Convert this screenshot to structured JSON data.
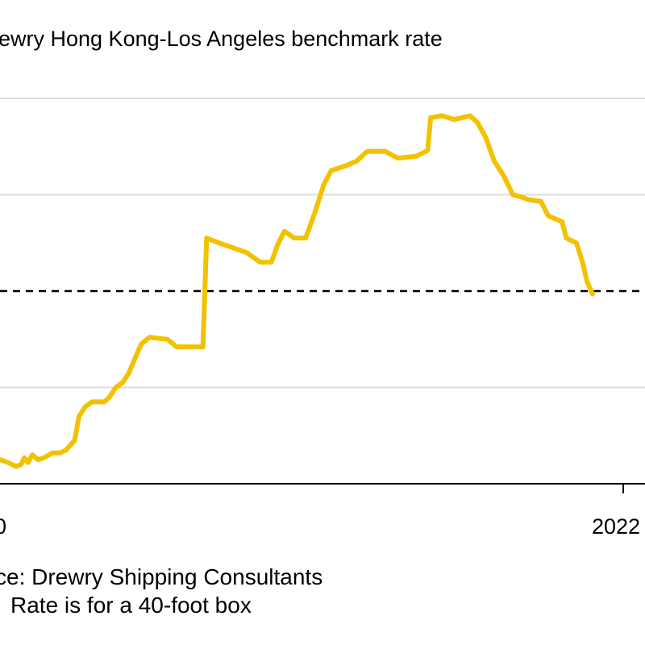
{
  "colors": {
    "line": "#f2c200",
    "grid": "#dcdcdc",
    "axis": "#000000",
    "reference": "#000000"
  },
  "chart_data": {
    "type": "line",
    "subtitle": "ewry Hong Kong-Los Angeles benchmark rate",
    "x_tick_labels": [
      "0",
      "2022"
    ],
    "x_range": [
      0,
      100
    ],
    "y_range": [
      0,
      4
    ],
    "grid": true,
    "reference_line": {
      "y": 2,
      "style": "dashed"
    },
    "series": [
      {
        "points": [
          [
            0,
            0.25
          ],
          [
            1.3,
            0.22
          ],
          [
            2.6,
            0.18
          ],
          [
            3.4,
            0.2
          ],
          [
            3.9,
            0.27
          ],
          [
            4.5,
            0.22
          ],
          [
            5.2,
            0.3
          ],
          [
            6.1,
            0.25
          ],
          [
            7.1,
            0.27
          ],
          [
            8.4,
            0.32
          ],
          [
            9.6,
            0.32
          ],
          [
            10.6,
            0.35
          ],
          [
            12.0,
            0.45
          ],
          [
            12.7,
            0.7
          ],
          [
            13.7,
            0.8
          ],
          [
            14.8,
            0.85
          ],
          [
            16.8,
            0.85
          ],
          [
            17.6,
            0.9
          ],
          [
            18.6,
            1.0
          ],
          [
            19.7,
            1.05
          ],
          [
            20.7,
            1.15
          ],
          [
            21.7,
            1.3
          ],
          [
            22.7,
            1.45
          ],
          [
            24.0,
            1.52
          ],
          [
            26.9,
            1.5
          ],
          [
            28.4,
            1.42
          ],
          [
            32.6,
            1.42
          ],
          [
            33.2,
            2.55
          ],
          [
            35.2,
            2.5
          ],
          [
            39.6,
            2.4
          ],
          [
            41.8,
            2.3
          ],
          [
            43.6,
            2.3
          ],
          [
            44.6,
            2.48
          ],
          [
            45.7,
            2.62
          ],
          [
            47.3,
            2.55
          ],
          [
            49.1,
            2.55
          ],
          [
            50.5,
            2.8
          ],
          [
            52.0,
            3.1
          ],
          [
            53.2,
            3.25
          ],
          [
            55.5,
            3.3
          ],
          [
            57.3,
            3.35
          ],
          [
            59.0,
            3.45
          ],
          [
            61.9,
            3.45
          ],
          [
            63.9,
            3.38
          ],
          [
            66.9,
            3.4
          ],
          [
            68.7,
            3.46
          ],
          [
            69.2,
            3.8
          ],
          [
            71.0,
            3.82
          ],
          [
            73.0,
            3.78
          ],
          [
            75.5,
            3.82
          ],
          [
            76.7,
            3.75
          ],
          [
            78.0,
            3.6
          ],
          [
            79.4,
            3.35
          ],
          [
            80.9,
            3.2
          ],
          [
            82.4,
            3.0
          ],
          [
            83.6,
            2.98
          ],
          [
            84.9,
            2.95
          ],
          [
            86.9,
            2.93
          ],
          [
            88.1,
            2.78
          ],
          [
            90.3,
            2.72
          ],
          [
            91.0,
            2.55
          ],
          [
            92.6,
            2.5
          ],
          [
            93.6,
            2.3
          ],
          [
            94.3,
            2.1
          ],
          [
            95.2,
            1.97
          ]
        ]
      }
    ]
  },
  "footer": {
    "source": "ce: Drewry Shipping Consultants",
    "note": "Rate is for a 40-foot box"
  }
}
